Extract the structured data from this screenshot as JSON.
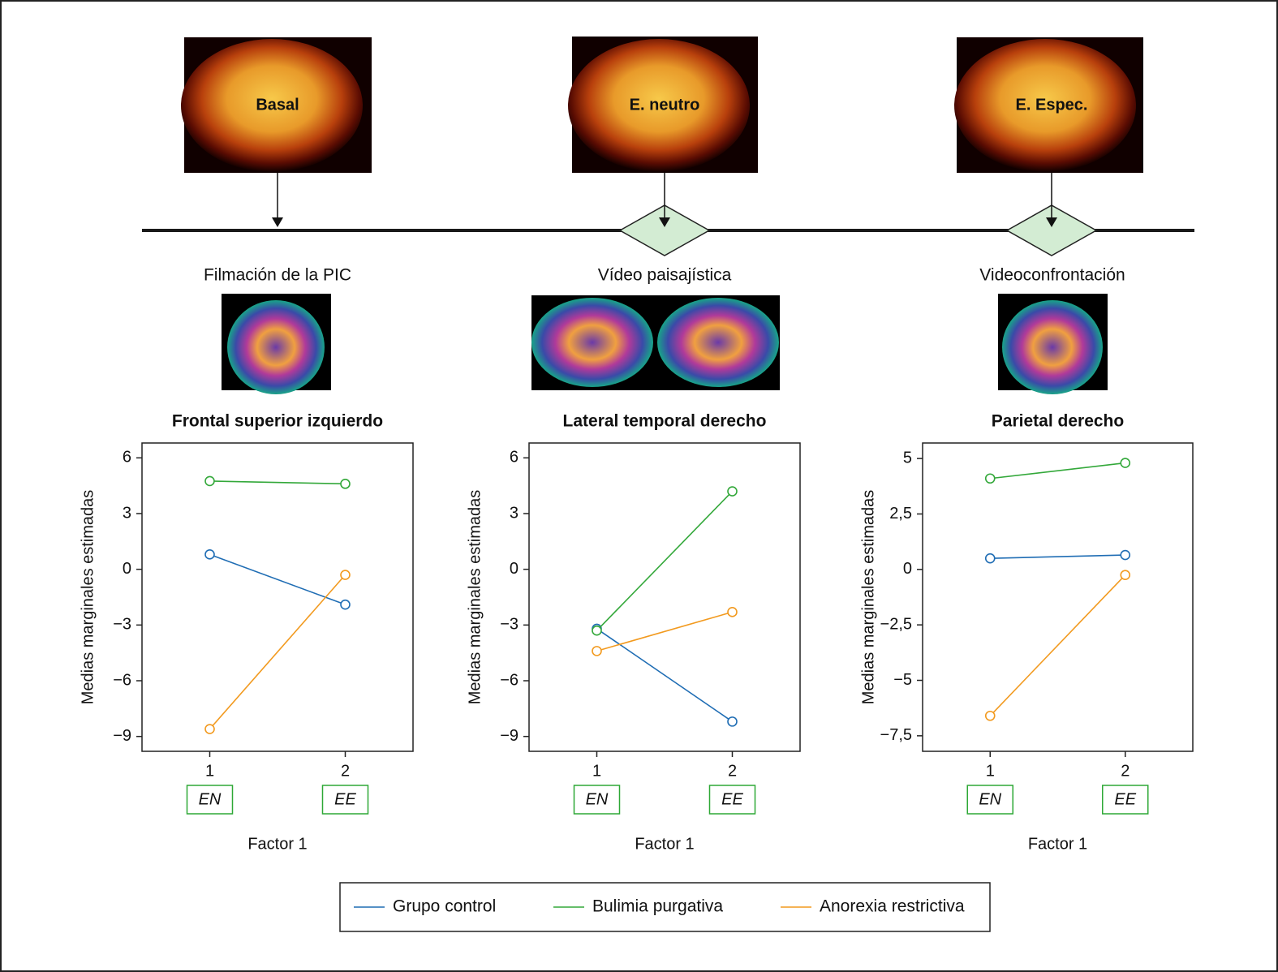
{
  "timeline": {
    "stages": [
      {
        "image_label": "Basal",
        "caption": "Filmación de la PIC"
      },
      {
        "image_label": "E. neutro",
        "caption": "Vídeo paisajística"
      },
      {
        "image_label": "E. Espec.",
        "caption": "Videoconfrontación"
      }
    ]
  },
  "chart_data": [
    {
      "type": "line",
      "title": "Frontal superior izquierdo",
      "y_label": "Medias marginales estimadas",
      "x_label": "Factor 1",
      "x": [
        1,
        2
      ],
      "x_labels": [
        "EN",
        "EE"
      ],
      "xlim": [
        0.5,
        2.5
      ],
      "xticks": [
        1,
        2
      ],
      "ylim": [
        -9.8,
        6.8
      ],
      "yticks": [
        {
          "value": -9,
          "label": "−9"
        },
        {
          "value": -6,
          "label": "−6"
        },
        {
          "value": -3,
          "label": "−3"
        },
        0,
        3,
        6
      ],
      "series": [
        {
          "name": "Grupo control",
          "color": "#1f6db4",
          "values": [
            0.8,
            -1.9
          ]
        },
        {
          "name": "Bulimia purgativa",
          "color": "#33a83a",
          "values": [
            4.75,
            4.6
          ]
        },
        {
          "name": "Anorexia restrictiva",
          "color": "#f29a1f",
          "values": [
            -8.6,
            -0.3
          ]
        }
      ]
    },
    {
      "type": "line",
      "title": "Lateral temporal derecho",
      "y_label": "Medias marginales estimadas",
      "x_label": "Factor 1",
      "x": [
        1,
        2
      ],
      "x_labels": [
        "EN",
        "EE"
      ],
      "xlim": [
        0.5,
        2.5
      ],
      "xticks": [
        1,
        2
      ],
      "ylim": [
        -9.8,
        6.8
      ],
      "yticks": [
        {
          "value": -9,
          "label": "−9"
        },
        {
          "value": -6,
          "label": "−6"
        },
        {
          "value": -3,
          "label": "−3"
        },
        0,
        3,
        6
      ],
      "series": [
        {
          "name": "Grupo control",
          "color": "#1f6db4",
          "values": [
            -3.2,
            -8.2
          ]
        },
        {
          "name": "Bulimia purgativa",
          "color": "#33a83a",
          "values": [
            -3.3,
            4.2
          ]
        },
        {
          "name": "Anorexia restrictiva",
          "color": "#f29a1f",
          "values": [
            -4.4,
            -2.3
          ]
        }
      ]
    },
    {
      "type": "line",
      "title": "Parietal derecho",
      "y_label": "Medias marginales estimadas",
      "x_label": "Factor 1",
      "x": [
        1,
        2
      ],
      "x_labels": [
        "EN",
        "EE"
      ],
      "xlim": [
        0.5,
        2.5
      ],
      "xticks": [
        1,
        2
      ],
      "ylim": [
        -8.2,
        5.7
      ],
      "yticks": [
        {
          "value": -7.5,
          "label": "−7,5"
        },
        {
          "value": -5,
          "label": "−5"
        },
        {
          "value": -2.5,
          "label": "−2,5"
        },
        0,
        {
          "value": 2.5,
          "label": "2,5"
        },
        5
      ],
      "series": [
        {
          "name": "Grupo control",
          "color": "#1f6db4",
          "values": [
            0.5,
            0.65
          ]
        },
        {
          "name": "Bulimia purgativa",
          "color": "#33a83a",
          "values": [
            4.1,
            4.8
          ]
        },
        {
          "name": "Anorexia restrictiva",
          "color": "#f29a1f",
          "values": [
            -6.6,
            -0.25
          ]
        }
      ]
    }
  ]
}
